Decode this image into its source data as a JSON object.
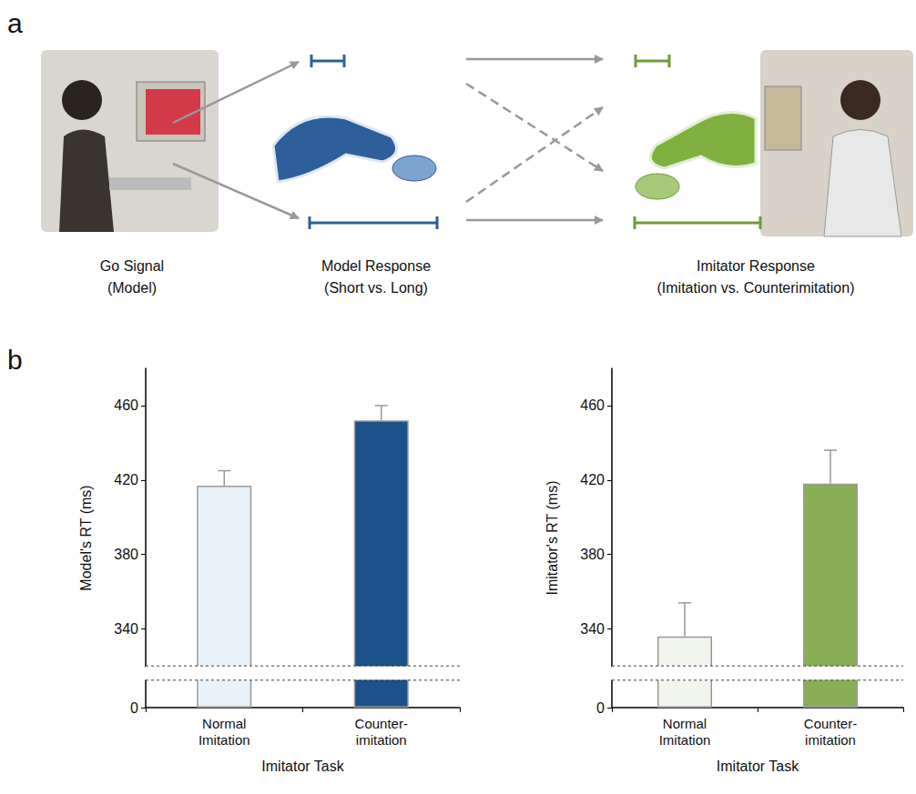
{
  "panel_a": {
    "label": "a",
    "steps": [
      {
        "title": "Go Signal",
        "subtitle": "(Model)"
      },
      {
        "title": "Model Response",
        "subtitle": "(Short vs. Long)"
      },
      {
        "title": "Imitator Response",
        "subtitle": "(Imitation vs. Counterimitation)"
      }
    ]
  },
  "panel_b": {
    "label": "b"
  },
  "chart_data": [
    {
      "type": "bar",
      "x_label": "Imitator Task",
      "y_label": "Model's RT (ms)",
      "categories": [
        "Normal Imitation",
        "Counter-imitation"
      ],
      "values": [
        417,
        452
      ],
      "errors": [
        8,
        8
      ],
      "colors": [
        "#e9f2f8",
        "#1d5189"
      ],
      "ylim": [
        0,
        480
      ],
      "yticks": [
        0,
        340,
        380,
        420,
        460
      ],
      "ybreak": [
        15,
        320
      ],
      "grid": false
    },
    {
      "type": "bar",
      "x_label": "Imitator Task",
      "y_label": "Imitator's RT (ms)",
      "categories": [
        "Normal Imitation",
        "Counter-imitation"
      ],
      "values": [
        336,
        418
      ],
      "errors": [
        18,
        18
      ],
      "colors": [
        "#f2f5ee",
        "#88ae56"
      ],
      "ylim": [
        0,
        480
      ],
      "yticks": [
        0,
        340,
        380,
        420,
        460
      ],
      "ybreak": [
        15,
        320
      ],
      "grid": false
    }
  ]
}
